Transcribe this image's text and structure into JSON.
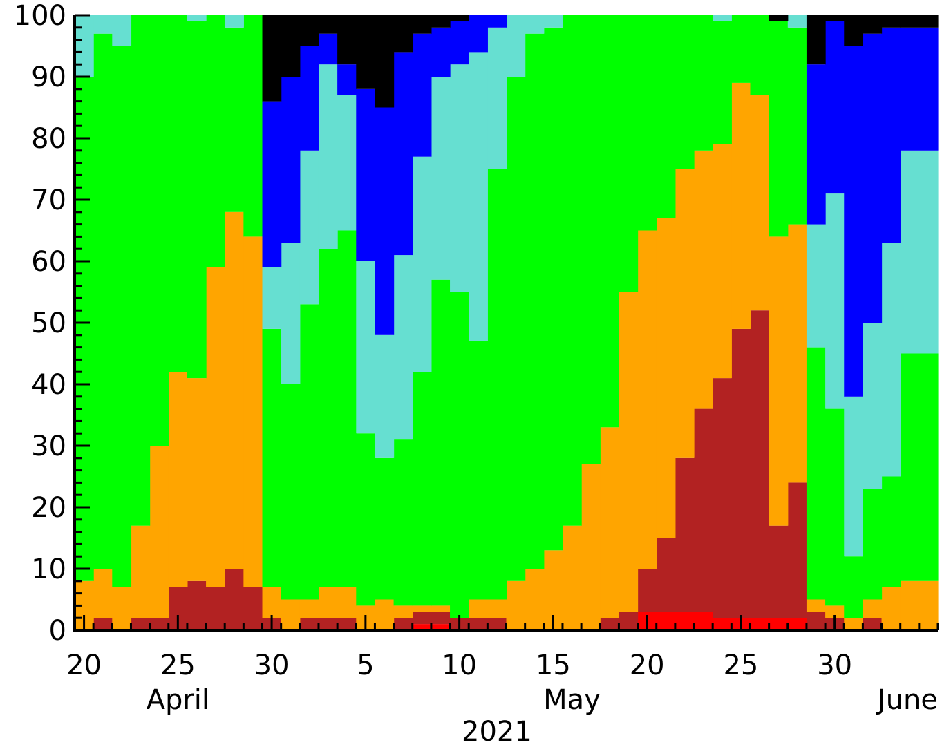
{
  "chart_data": {
    "type": "area",
    "x_day_labels": [
      "20",
      "25",
      "30",
      "5",
      "10",
      "15",
      "20",
      "25",
      "30"
    ],
    "x_month_labels": [
      "April",
      "May",
      "June"
    ],
    "x_year_label": "2021",
    "y_tick_labels": [
      "0",
      "10",
      "20",
      "30",
      "40",
      "50",
      "60",
      "70",
      "80",
      "90",
      "100"
    ],
    "ylim": [
      0,
      100
    ],
    "x_range": [
      "2021-04-20",
      "2021-06-04"
    ],
    "x_day_tick_dates": [
      "2021-04-20",
      "2021-04-25",
      "2021-04-30",
      "2021-05-05",
      "2021-05-10",
      "2021-05-15",
      "2021-05-20",
      "2021-05-25",
      "2021-05-30"
    ],
    "x_month_label_dates": [
      "2021-04-25",
      "2021-05-16",
      "2021-06-03"
    ],
    "x_year_label_date": "2021-05-12",
    "stacking": "cumulative-percent",
    "colors": [
      "#ff0000",
      "#b22222",
      "#ffa500",
      "#00ff00",
      "#66dfd1",
      "#0000ff",
      "#000000"
    ],
    "dates": [
      "2021-04-20",
      "2021-04-21",
      "2021-04-22",
      "2021-04-23",
      "2021-04-24",
      "2021-04-25",
      "2021-04-26",
      "2021-04-27",
      "2021-04-28",
      "2021-04-29",
      "2021-04-30",
      "2021-05-01",
      "2021-05-02",
      "2021-05-03",
      "2021-05-04",
      "2021-05-05",
      "2021-05-06",
      "2021-05-07",
      "2021-05-08",
      "2021-05-09",
      "2021-05-10",
      "2021-05-11",
      "2021-05-12",
      "2021-05-13",
      "2021-05-14",
      "2021-05-15",
      "2021-05-16",
      "2021-05-17",
      "2021-05-18",
      "2021-05-19",
      "2021-05-20",
      "2021-05-21",
      "2021-05-22",
      "2021-05-23",
      "2021-05-24",
      "2021-05-25",
      "2021-05-26",
      "2021-05-27",
      "2021-05-28",
      "2021-05-29",
      "2021-05-30",
      "2021-05-31",
      "2021-06-01",
      "2021-06-02",
      "2021-06-03"
    ],
    "series": [
      {
        "values": [
          0,
          0,
          0,
          0,
          0,
          0,
          0,
          0,
          0,
          0,
          0,
          0,
          0,
          0,
          0,
          0,
          0,
          0,
          1,
          1,
          0,
          0,
          0,
          0,
          0,
          0,
          0,
          0,
          0,
          0,
          3,
          3,
          3,
          3,
          2,
          2,
          2,
          2,
          2,
          0,
          0,
          0,
          0,
          0,
          0
        ]
      },
      {
        "values": [
          0,
          2,
          0,
          2,
          2,
          7,
          8,
          7,
          10,
          7,
          2,
          0,
          2,
          2,
          2,
          0,
          0,
          2,
          3,
          3,
          2,
          2,
          2,
          0,
          0,
          0,
          0,
          0,
          2,
          3,
          10,
          15,
          28,
          36,
          41,
          49,
          52,
          17,
          24,
          3,
          2,
          0,
          2,
          0,
          0
        ]
      },
      {
        "values": [
          8,
          10,
          7,
          17,
          30,
          42,
          41,
          59,
          68,
          64,
          7,
          5,
          5,
          7,
          7,
          4,
          5,
          4,
          4,
          4,
          2,
          5,
          5,
          8,
          10,
          13,
          17,
          27,
          33,
          55,
          65,
          67,
          75,
          78,
          79,
          89,
          87,
          64,
          66,
          5,
          4,
          2,
          5,
          7,
          8
        ]
      },
      {
        "values": [
          90,
          97,
          95,
          100,
          100,
          100,
          99,
          100,
          98,
          100,
          49,
          40,
          53,
          62,
          65,
          32,
          28,
          31,
          42,
          57,
          55,
          47,
          75,
          90,
          97,
          98,
          100,
          100,
          100,
          100,
          100,
          100,
          100,
          100,
          99,
          100,
          100,
          100,
          98,
          46,
          36,
          12,
          23,
          25,
          45
        ]
      },
      {
        "values": [
          100,
          100,
          100,
          100,
          100,
          100,
          100,
          100,
          100,
          100,
          59,
          63,
          78,
          92,
          87,
          60,
          48,
          61,
          77,
          90,
          92,
          94,
          98,
          100,
          100,
          100,
          100,
          100,
          100,
          100,
          100,
          100,
          100,
          100,
          100,
          100,
          100,
          100,
          100,
          66,
          71,
          38,
          50,
          63,
          78
        ]
      },
      {
        "values": [
          100,
          100,
          100,
          100,
          100,
          100,
          100,
          100,
          100,
          100,
          86,
          90,
          95,
          97,
          92,
          88,
          85,
          94,
          97,
          98,
          99,
          100,
          100,
          100,
          100,
          100,
          100,
          100,
          100,
          100,
          100,
          100,
          100,
          100,
          100,
          100,
          100,
          99,
          100,
          92,
          99,
          95,
          97,
          98,
          98
        ]
      },
      {
        "values": [
          100,
          100,
          100,
          100,
          100,
          100,
          100,
          100,
          100,
          100,
          100,
          100,
          100,
          100,
          100,
          100,
          100,
          100,
          100,
          100,
          100,
          100,
          100,
          100,
          100,
          100,
          100,
          100,
          100,
          100,
          100,
          100,
          100,
          100,
          100,
          100,
          100,
          100,
          100,
          100,
          100,
          100,
          100,
          100,
          100
        ]
      }
    ]
  }
}
